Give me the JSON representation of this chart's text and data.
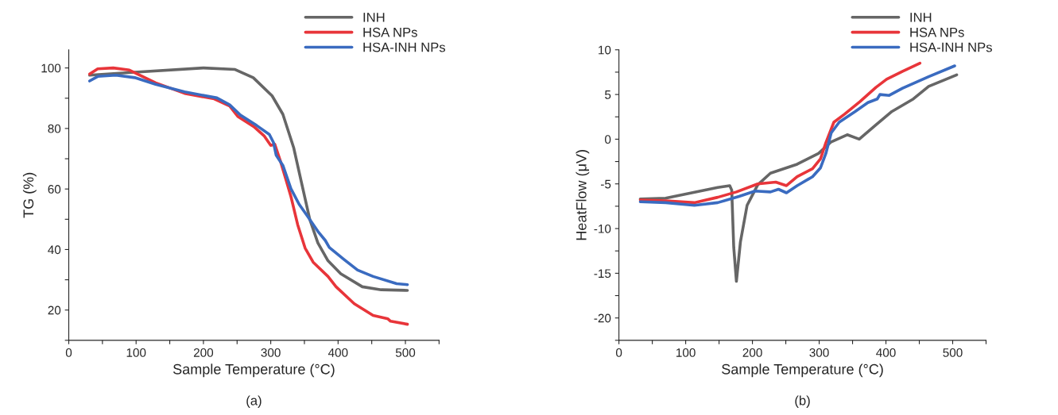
{
  "chart_data": [
    {
      "type": "line",
      "xlabel": "Sample Temperature (°C)",
      "ylabel": "TG (%)",
      "annotations": [
        "(a)"
      ],
      "legend": "top right",
      "grid": false,
      "line_style": "solid",
      "marker": "none",
      "xlim": [
        0,
        550
      ],
      "xticks": [
        0,
        {
          "value": 50,
          "label": null
        },
        100,
        {
          "value": 150,
          "label": null
        },
        200,
        {
          "value": 250,
          "label": null
        },
        300,
        {
          "value": 350,
          "label": null
        },
        400,
        {
          "value": 450,
          "label": null
        },
        500,
        {
          "value": 550,
          "label": null
        }
      ],
      "ylim": [
        10,
        106
      ],
      "yticks": [
        {
          "value": 10,
          "label": null
        },
        20,
        {
          "value": 30,
          "label": null
        },
        40,
        {
          "value": 50,
          "label": null
        },
        60,
        {
          "value": 70,
          "label": null
        },
        80,
        {
          "value": 90,
          "label": null
        },
        100
      ],
      "series": [
        {
          "name": "INH",
          "color": "#666666",
          "x": [
            31,
            98,
            200,
            247,
            274,
            302,
            318,
            334,
            346,
            358,
            370,
            385,
            404,
            436,
            464,
            503
          ],
          "values": [
            97.6,
            98.6,
            100,
            99.5,
            96.8,
            90.8,
            84.7,
            73.7,
            61.8,
            49.9,
            42.2,
            36.3,
            32,
            27.7,
            26.7,
            26.5
          ]
        },
        {
          "name": "HSA NPs",
          "color": "#e8353a",
          "x": [
            31,
            43,
            66,
            90,
            129,
            172,
            216,
            239,
            251,
            275,
            290,
            300,
            306,
            314,
            322,
            330,
            340,
            351,
            363,
            385,
            397,
            424,
            452,
            474,
            478,
            503
          ],
          "values": [
            98.0,
            99.7,
            100,
            99.3,
            95.1,
            91.6,
            89.8,
            87.4,
            84.0,
            80.6,
            77.6,
            74.4,
            74.8,
            69.5,
            63.5,
            57.5,
            48.2,
            40.5,
            35.8,
            31.1,
            27.7,
            22.1,
            18.2,
            17.1,
            16.3,
            15.3
          ]
        },
        {
          "name": "HSA-INH NPs",
          "color": "#3a6bc0",
          "x": [
            31,
            43,
            70,
            98,
            129,
            172,
            220,
            239,
            255,
            279,
            298,
            304,
            308,
            318,
            330,
            342,
            354,
            370,
            381,
            387,
            409,
            429,
            452,
            487,
            503
          ],
          "values": [
            95.7,
            97.2,
            97.6,
            96.8,
            94.6,
            92.1,
            90.1,
            87.8,
            84.4,
            81.0,
            78.0,
            75.4,
            71.2,
            67.8,
            60.1,
            55,
            51.2,
            46.0,
            43.0,
            40.7,
            36.7,
            33.2,
            31.1,
            28.7,
            28.4
          ]
        }
      ]
    },
    {
      "type": "line",
      "xlabel": "Sample Temperature (°C)",
      "ylabel": "HeatFlow (μV)",
      "annotations": [
        "(b)"
      ],
      "legend": "top right",
      "grid": false,
      "line_style": "solid",
      "marker": "none",
      "xlim": [
        0,
        550
      ],
      "xticks": [
        0,
        {
          "value": 50,
          "label": null
        },
        100,
        {
          "value": 150,
          "label": null
        },
        200,
        {
          "value": 250,
          "label": null
        },
        300,
        {
          "value": 350,
          "label": null
        },
        400,
        {
          "value": 450,
          "label": null
        },
        500,
        {
          "value": 550,
          "label": null
        }
      ],
      "ylim": [
        -22.5,
        10
      ],
      "yticks": [
        {
          "value": -22.5,
          "label": null
        },
        {
          "value": -20,
          "label": "-20"
        },
        {
          "value": -17.5,
          "label": null
        },
        {
          "value": -15,
          "label": "-15"
        },
        {
          "value": -12.5,
          "label": null
        },
        {
          "value": -10,
          "label": "-10"
        },
        {
          "value": -7.5,
          "label": null
        },
        {
          "value": -5,
          "label": "-5"
        },
        {
          "value": -2.5,
          "label": null
        },
        0,
        {
          "value": 2.5,
          "label": null
        },
        5,
        {
          "value": 7.5,
          "label": null
        },
        10
      ],
      "series": [
        {
          "name": "INH",
          "color": "#666666",
          "x": [
            32,
            70,
            109,
            148,
            166,
            169,
            172,
            176,
            182,
            192,
            208,
            227,
            267,
            299,
            318,
            342,
            360,
            385,
            409,
            441,
            464,
            506
          ],
          "values": [
            -6.7,
            -6.6,
            -6.0,
            -5.4,
            -5.2,
            -5.7,
            -12.1,
            -15.9,
            -11.5,
            -7.4,
            -5.1,
            -3.8,
            -2.8,
            -1.6,
            -0.3,
            0.5,
            0.0,
            1.6,
            3.1,
            4.5,
            5.9,
            7.2
          ]
        },
        {
          "name": "HSA NPs",
          "color": "#e8353a",
          "x": [
            32,
            70,
            113,
            148,
            176,
            208,
            235,
            251,
            267,
            290,
            302,
            310,
            322,
            338,
            361,
            385,
            401,
            425,
            451
          ],
          "values": [
            -6.8,
            -6.9,
            -7.1,
            -6.5,
            -5.9,
            -5.0,
            -4.8,
            -5.2,
            -4.2,
            -3.3,
            -2.2,
            -0.4,
            1.9,
            2.8,
            4.2,
            5.8,
            6.7,
            7.6,
            8.5
          ]
        },
        {
          "name": "HSA-INH NPs",
          "color": "#3a6bc0",
          "x": [
            32,
            70,
            113,
            148,
            180,
            204,
            227,
            239,
            251,
            267,
            290,
            302,
            310,
            318,
            330,
            354,
            373,
            387,
            391,
            405,
            425,
            464,
            503
          ],
          "values": [
            -7.0,
            -7.1,
            -7.4,
            -7.1,
            -6.4,
            -5.8,
            -5.9,
            -5.6,
            -6.0,
            -5.2,
            -4.2,
            -3.2,
            -1.6,
            0.7,
            1.9,
            3.1,
            4.1,
            4.5,
            5.0,
            4.9,
            5.7,
            7.0,
            8.2
          ]
        }
      ]
    }
  ]
}
